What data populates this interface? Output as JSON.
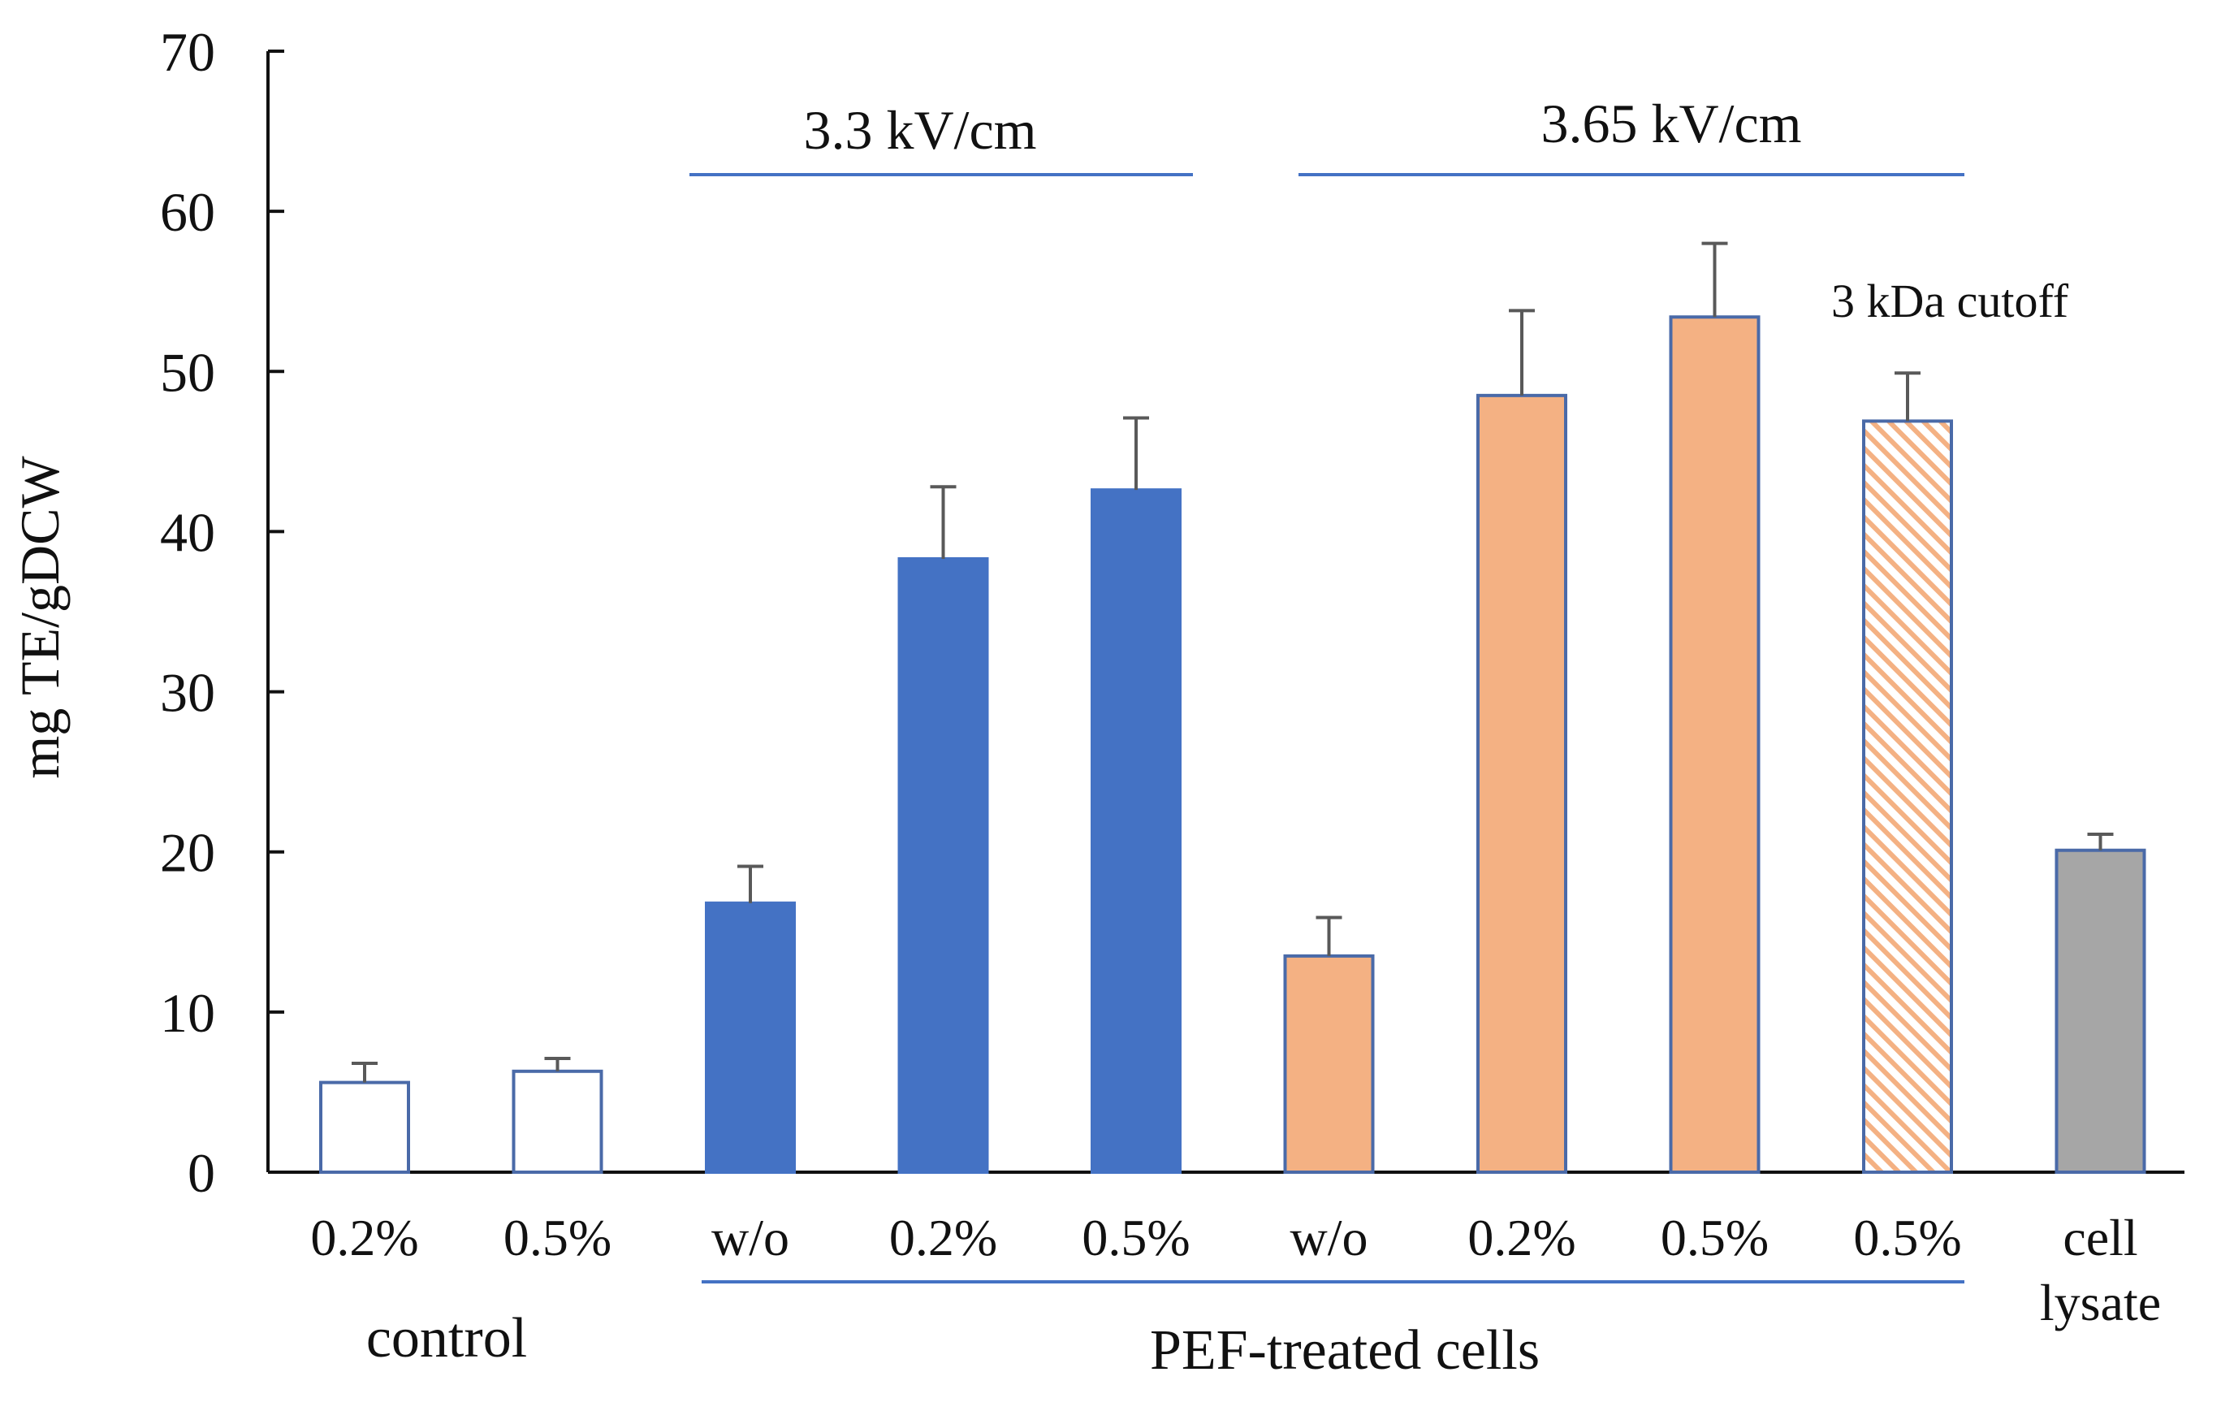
{
  "chart_data": {
    "type": "bar",
    "title": "",
    "xlabel": "",
    "ylabel": "mg TE/gDCW",
    "ylim": [
      0,
      70
    ],
    "yticks": [
      0,
      10,
      20,
      30,
      40,
      50,
      60,
      70
    ],
    "grid": false,
    "categories": [
      "0.2%",
      "0.5%",
      "w/o",
      "0.2%",
      "0.5%",
      "w/o",
      "0.2%",
      "0.5%",
      "0.5%",
      "cell\nlysate"
    ],
    "category_lines": [
      [
        "0.2%"
      ],
      [
        "0.5%"
      ],
      [
        "w/o"
      ],
      [
        "0.2%"
      ],
      [
        "0.5%"
      ],
      [
        "w/o"
      ],
      [
        "0.2%"
      ],
      [
        "0.5%"
      ],
      [
        "0.5%"
      ],
      [
        "cell",
        "lysate"
      ]
    ],
    "values": [
      5.6,
      6.3,
      16.8,
      38.3,
      42.6,
      13.5,
      48.5,
      53.4,
      46.9,
      20.1
    ],
    "errors": [
      1.2,
      0.8,
      2.3,
      4.5,
      4.5,
      2.4,
      5.3,
      4.6,
      3.0,
      1.0
    ],
    "bar_colors": [
      "#ffffff",
      "#ffffff",
      "#4472c4",
      "#4472c4",
      "#4472c4",
      "#f4b183",
      "#f4b183",
      "#f4b183",
      "hatched",
      "#a6a6a6"
    ],
    "group_labels": {
      "control": "control",
      "pef": "PEF-treated cells",
      "field_low": "3.3 kV/cm",
      "field_high": "3.65 kV/cm"
    },
    "annotations": [
      "3 kDa cutoff"
    ]
  }
}
